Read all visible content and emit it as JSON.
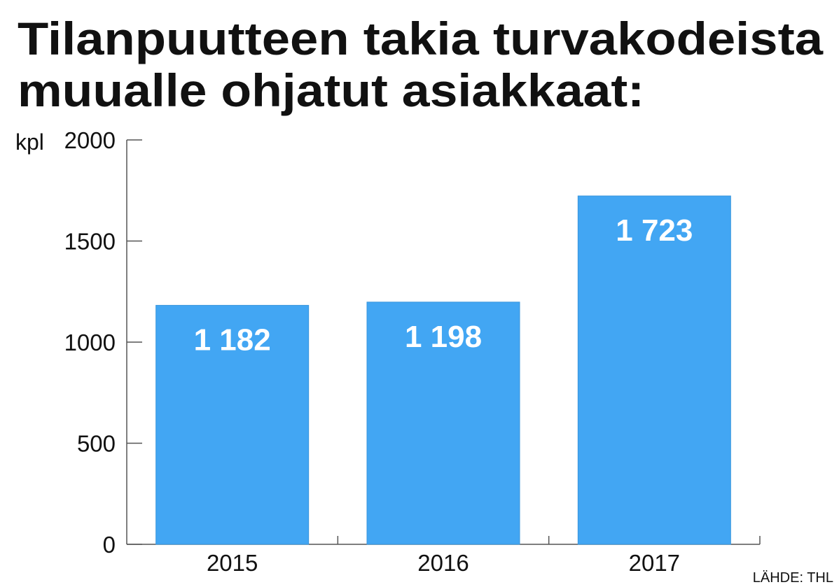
{
  "chart_data": {
    "type": "bar",
    "title": [
      "Tilanpuutteen takia turvakodeista",
      "muualle ohjatut asiakkaat:"
    ],
    "y_label": "kpl",
    "categories": [
      "2015",
      "2016",
      "2017"
    ],
    "values": [
      1182,
      1198,
      1723
    ],
    "value_labels": [
      "1 182",
      "1 198",
      "1 723"
    ],
    "color": "#42a6f3",
    "ylim": [
      0,
      2000
    ],
    "yticks": [
      0,
      500,
      1000,
      1500,
      2000
    ],
    "source": "LÄHDE: THL"
  }
}
